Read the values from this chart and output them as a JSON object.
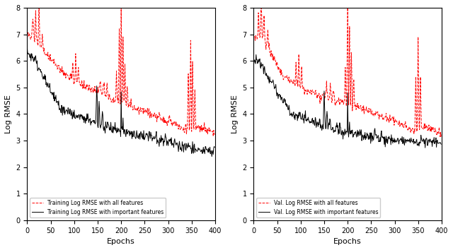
{
  "xlabel": "Epochs",
  "ylabel": "Log RMSE",
  "xlim": [
    0,
    400
  ],
  "ylim": [
    0,
    8
  ],
  "yticks": [
    0,
    1,
    2,
    3,
    4,
    5,
    6,
    7,
    8
  ],
  "xticks": [
    0,
    50,
    100,
    150,
    200,
    250,
    300,
    350,
    400
  ],
  "legend_left": [
    "Training Log RMSE with all features",
    "Training Log RMSE with important features"
  ],
  "legend_right": [
    "Val. Log RMSE with all features",
    "Val. Log RMSE with important features"
  ],
  "line_color_all": "red",
  "line_color_important": "black",
  "line_style_all": "--",
  "line_style_important": "-",
  "line_width": 0.7
}
